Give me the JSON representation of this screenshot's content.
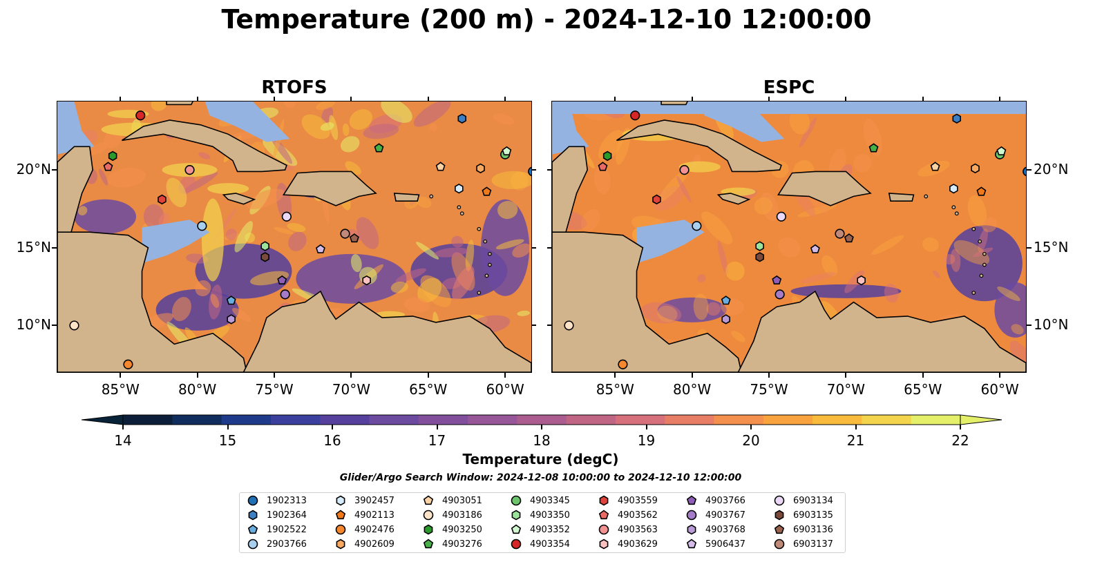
{
  "title": "Temperature (200 m) - 2024-12-10 12:00:00",
  "panels": [
    {
      "title": "RTOFS"
    },
    {
      "title": "ESPC"
    }
  ],
  "lon_ticks": [
    "85°W",
    "80°W",
    "75°W",
    "70°W",
    "65°W",
    "60°W"
  ],
  "lat_ticks": [
    "20°N",
    "15°N",
    "10°N"
  ],
  "colorbar": {
    "label": "Temperature (degC)",
    "ticks": [
      "14",
      "15",
      "16",
      "17",
      "18",
      "19",
      "20",
      "21",
      "22"
    ],
    "colors": [
      "#0b1f3a",
      "#102d5e",
      "#1e3a8a",
      "#3b3f9d",
      "#55409e",
      "#6b4aa0",
      "#814f9c",
      "#965697",
      "#aa5d8e",
      "#c06684",
      "#d6707a",
      "#e97e67",
      "#f4904d",
      "#f8a33e",
      "#f8bb3b",
      "#f2d44d",
      "#e4f06a"
    ],
    "under_color": "#082238",
    "over_color": "#e4f06a",
    "range": [
      14,
      22
    ]
  },
  "map_style": {
    "land": "#d2b48c",
    "shelf": "#95b3e0",
    "deep": "#082238",
    "ocean_rtofs": "#e98a45",
    "ocean_espc": "#ee8a3e"
  },
  "search_window": "Glider/Argo Search Window: 2024-12-08 10:00:00 to 2024-12-10 12:00:00",
  "legend": [
    {
      "id": "1902313",
      "marker": "circle",
      "color": "#1f6fb4"
    },
    {
      "id": "1902364",
      "marker": "hexagon",
      "color": "#3d7fc2"
    },
    {
      "id": "1902522",
      "marker": "pentagon",
      "color": "#6aaedf"
    },
    {
      "id": "2903766",
      "marker": "circle",
      "color": "#a9cfee"
    },
    {
      "id": "3902457",
      "marker": "hexagon",
      "color": "#d6ecfb"
    },
    {
      "id": "4902113",
      "marker": "pentagon",
      "color": "#f07a1a"
    },
    {
      "id": "4902476",
      "marker": "circle",
      "color": "#f5872f"
    },
    {
      "id": "4902609",
      "marker": "hexagon",
      "color": "#f9a95f"
    },
    {
      "id": "4903051",
      "marker": "pentagon",
      "color": "#fbd3a3"
    },
    {
      "id": "4903186",
      "marker": "circle",
      "color": "#fde3c8"
    },
    {
      "id": "4903250",
      "marker": "hexagon",
      "color": "#2a9a2a"
    },
    {
      "id": "4903276",
      "marker": "pentagon",
      "color": "#48b048"
    },
    {
      "id": "4903345",
      "marker": "circle",
      "color": "#6cc46c"
    },
    {
      "id": "4903350",
      "marker": "hexagon",
      "color": "#9be39b"
    },
    {
      "id": "4903352",
      "marker": "pentagon",
      "color": "#d0f7cf"
    },
    {
      "id": "4903354",
      "marker": "circle",
      "color": "#d62728"
    },
    {
      "id": "4903559",
      "marker": "hexagon",
      "color": "#e0423c"
    },
    {
      "id": "4903562",
      "marker": "pentagon",
      "color": "#ea6a66"
    },
    {
      "id": "4903563",
      "marker": "circle",
      "color": "#f29293"
    },
    {
      "id": "4903629",
      "marker": "hexagon",
      "color": "#f9c1c0"
    },
    {
      "id": "4903766",
      "marker": "pentagon",
      "color": "#8f5fb8"
    },
    {
      "id": "4903767",
      "marker": "circle",
      "color": "#a47cc7"
    },
    {
      "id": "4903768",
      "marker": "hexagon",
      "color": "#b99bd6"
    },
    {
      "id": "5906437",
      "marker": "pentagon",
      "color": "#d3bde8"
    },
    {
      "id": "6903134",
      "marker": "circle",
      "color": "#ead8f6"
    },
    {
      "id": "6903135",
      "marker": "hexagon",
      "color": "#7b4a3a"
    },
    {
      "id": "6903136",
      "marker": "pentagon",
      "color": "#9a6350"
    },
    {
      "id": "6903137",
      "marker": "circle",
      "color": "#c08a7a"
    }
  ],
  "profiles": [
    {
      "marker": "circle",
      "color": "#d62728",
      "lon": -83.7,
      "lat": 23.5
    },
    {
      "marker": "hexagon",
      "color": "#3d7fc2",
      "lon": -62.8,
      "lat": 23.3
    },
    {
      "marker": "hexagon",
      "color": "#2a9a2a",
      "lon": -85.5,
      "lat": 20.9
    },
    {
      "marker": "pentagon",
      "color": "#ea6a66",
      "lon": -85.8,
      "lat": 20.2
    },
    {
      "marker": "pentagon",
      "color": "#48b048",
      "lon": -68.2,
      "lat": 21.4
    },
    {
      "marker": "circle",
      "color": "#6cc46c",
      "lon": -60.0,
      "lat": 21.0
    },
    {
      "marker": "pentagon",
      "color": "#d0f7cf",
      "lon": -59.9,
      "lat": 21.2
    },
    {
      "marker": "circle",
      "color": "#f29293",
      "lon": -80.5,
      "lat": 20.0
    },
    {
      "marker": "pentagon",
      "color": "#fbd3a3",
      "lon": -64.2,
      "lat": 20.2
    },
    {
      "marker": "hexagon",
      "color": "#f9a95f",
      "lon": -61.6,
      "lat": 20.1
    },
    {
      "marker": "circle",
      "color": "#1f6fb4",
      "lon": -58.2,
      "lat": 19.9
    },
    {
      "marker": "hexagon",
      "color": "#d6ecfb",
      "lon": -63.0,
      "lat": 18.8
    },
    {
      "marker": "pentagon",
      "color": "#f07a1a",
      "lon": -61.2,
      "lat": 18.6
    },
    {
      "marker": "hexagon",
      "color": "#e0423c",
      "lon": -82.3,
      "lat": 18.1
    },
    {
      "marker": "circle",
      "color": "#a9cfee",
      "lon": -79.7,
      "lat": 16.4
    },
    {
      "marker": "circle",
      "color": "#ead8f6",
      "lon": -74.2,
      "lat": 17.0
    },
    {
      "marker": "circle",
      "color": "#c08a7a",
      "lon": -70.4,
      "lat": 15.9
    },
    {
      "marker": "pentagon",
      "color": "#9a6350",
      "lon": -69.8,
      "lat": 15.6
    },
    {
      "marker": "hexagon",
      "color": "#9be39b",
      "lon": -75.6,
      "lat": 15.1
    },
    {
      "marker": "hexagon",
      "color": "#7b4a3a",
      "lon": -75.6,
      "lat": 14.4
    },
    {
      "marker": "pentagon",
      "color": "#d3bde8",
      "lon": -72.0,
      "lat": 14.9
    },
    {
      "marker": "pentagon",
      "color": "#8f5fb8",
      "lon": -74.5,
      "lat": 12.9
    },
    {
      "marker": "hexagon",
      "color": "#f9c1c0",
      "lon": -69.0,
      "lat": 12.9
    },
    {
      "marker": "circle",
      "color": "#a47cc7",
      "lon": -74.3,
      "lat": 12.0
    },
    {
      "marker": "pentagon",
      "color": "#6aaedf",
      "lon": -77.8,
      "lat": 11.6
    },
    {
      "marker": "hexagon",
      "color": "#b99bd6",
      "lon": -77.8,
      "lat": 10.4
    },
    {
      "marker": "circle",
      "color": "#fde3c8",
      "lon": -88.0,
      "lat": 10.0
    },
    {
      "marker": "circle",
      "color": "#f5872f",
      "lon": -84.5,
      "lat": 7.5
    }
  ],
  "land_shapes": [
    {
      "name": "central-america",
      "pts": [
        [
          -89.1,
          16.0
        ],
        [
          -87.0,
          16.0
        ],
        [
          -84.5,
          15.8
        ],
        [
          -83.2,
          15.0
        ],
        [
          -83.6,
          13.5
        ],
        [
          -83.6,
          11.8
        ],
        [
          -83.0,
          10.0
        ],
        [
          -81.5,
          8.8
        ],
        [
          -79.0,
          9.5
        ],
        [
          -77.8,
          8.6
        ],
        [
          -77.0,
          7.9
        ],
        [
          -76.8,
          7.0
        ],
        [
          -89.1,
          7.0
        ]
      ]
    },
    {
      "name": "south-america",
      "pts": [
        [
          -77.0,
          7.0
        ],
        [
          -76.0,
          9.0
        ],
        [
          -75.5,
          10.5
        ],
        [
          -74.5,
          11.2
        ],
        [
          -73.0,
          11.5
        ],
        [
          -72.0,
          12.2
        ],
        [
          -71.4,
          11.0
        ],
        [
          -71.0,
          10.4
        ],
        [
          -69.5,
          11.5
        ],
        [
          -68.0,
          10.5
        ],
        [
          -66.0,
          10.6
        ],
        [
          -64.5,
          10.2
        ],
        [
          -62.3,
          10.6
        ],
        [
          -61.0,
          9.8
        ],
        [
          -60.0,
          8.6
        ],
        [
          -58.3,
          7.6
        ],
        [
          -58.3,
          7.0
        ]
      ]
    },
    {
      "name": "yucatan",
      "pts": [
        [
          -89.1,
          20.5
        ],
        [
          -88.0,
          21.5
        ],
        [
          -87.0,
          21.5
        ],
        [
          -86.8,
          20.0
        ],
        [
          -87.5,
          18.5
        ],
        [
          -88.2,
          16.0
        ],
        [
          -89.1,
          16.0
        ]
      ]
    },
    {
      "name": "florida",
      "pts": [
        [
          -82.0,
          24.2
        ],
        [
          -80.4,
          24.2
        ],
        [
          -80.0,
          25.0
        ],
        [
          -82.0,
          25.0
        ]
      ]
    },
    {
      "name": "cuba",
      "pts": [
        [
          -84.9,
          21.9
        ],
        [
          -83.5,
          22.8
        ],
        [
          -81.8,
          23.2
        ],
        [
          -79.8,
          22.9
        ],
        [
          -78.0,
          22.3
        ],
        [
          -76.0,
          21.2
        ],
        [
          -74.2,
          20.3
        ],
        [
          -74.3,
          20.0
        ],
        [
          -75.8,
          19.9
        ],
        [
          -77.4,
          19.9
        ],
        [
          -77.7,
          20.6
        ],
        [
          -79.0,
          21.5
        ],
        [
          -81.0,
          22.0
        ],
        [
          -82.2,
          22.3
        ],
        [
          -83.6,
          22.1
        ]
      ]
    },
    {
      "name": "hispaniola",
      "pts": [
        [
          -74.4,
          18.4
        ],
        [
          -73.5,
          19.8
        ],
        [
          -72.0,
          19.9
        ],
        [
          -70.0,
          19.9
        ],
        [
          -69.0,
          19.0
        ],
        [
          -68.4,
          18.5
        ],
        [
          -69.5,
          18.3
        ],
        [
          -71.0,
          17.7
        ],
        [
          -72.4,
          18.3
        ]
      ]
    },
    {
      "name": "jamaica",
      "pts": [
        [
          -78.3,
          18.4
        ],
        [
          -77.5,
          18.5
        ],
        [
          -76.3,
          18.1
        ],
        [
          -77.0,
          17.8
        ],
        [
          -78.0,
          18.1
        ]
      ]
    },
    {
      "name": "puerto-rico",
      "pts": [
        [
          -67.2,
          18.5
        ],
        [
          -65.6,
          18.4
        ],
        [
          -65.7,
          18.0
        ],
        [
          -67.1,
          18.0
        ]
      ]
    }
  ],
  "shelf_shapes": [
    {
      "name": "bahamas-bank",
      "pts": [
        [
          -79.5,
          24.4
        ],
        [
          -77.0,
          25.0
        ],
        [
          -75.0,
          23.0
        ],
        [
          -74.0,
          22.0
        ],
        [
          -75.5,
          21.8
        ],
        [
          -77.5,
          22.8
        ],
        [
          -79.2,
          23.5
        ]
      ]
    },
    {
      "name": "nicaragua-rise",
      "pts": [
        [
          -83.6,
          16.3
        ],
        [
          -80.5,
          16.8
        ],
        [
          -79.2,
          16.0
        ],
        [
          -80.5,
          15.2
        ],
        [
          -82.0,
          14.5
        ],
        [
          -83.6,
          14.0
        ]
      ]
    },
    {
      "name": "gulf-shelf",
      "pts": [
        [
          -89.1,
          24.4
        ],
        [
          -88.0,
          24.4
        ],
        [
          -87.5,
          22.5
        ],
        [
          -86.7,
          21.5
        ],
        [
          -89.1,
          21.0
        ]
      ]
    }
  ]
}
